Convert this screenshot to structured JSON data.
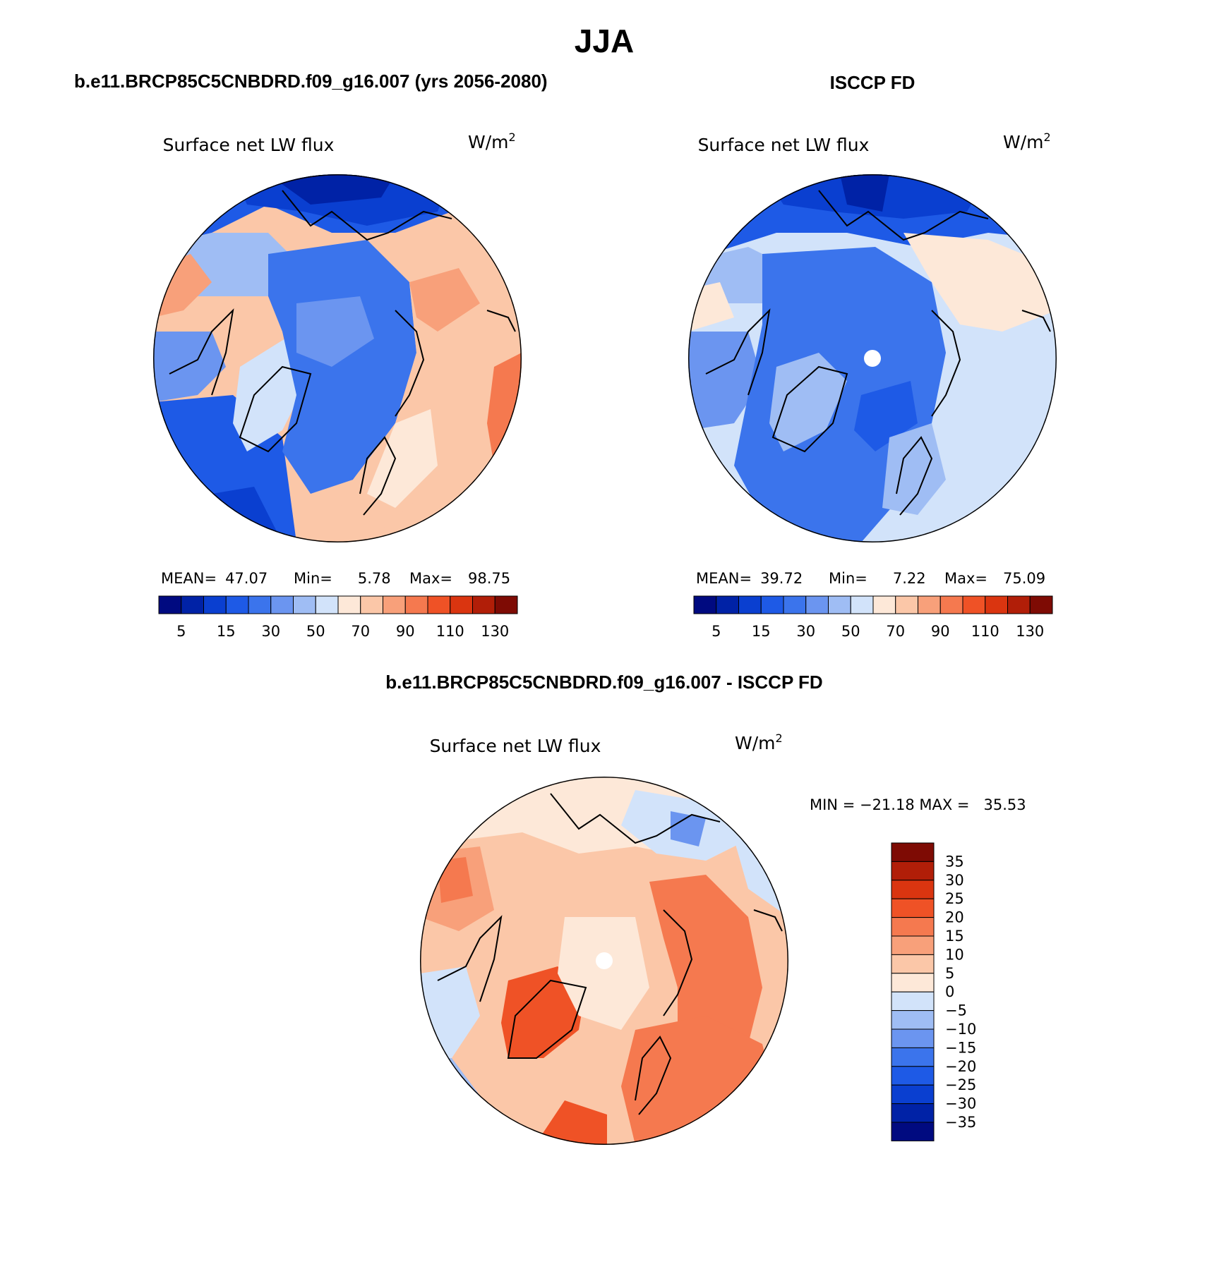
{
  "figure": {
    "title": "JJA",
    "left_caption": "b.e11.BRCP85C5CNBDRD.f09_g16.007 (yrs 2056-2080)",
    "right_caption": "ISCCP FD",
    "bottom_caption": "b.e11.BRCP85C5CNBDRD.f09_g16.007 - ISCCP FD"
  },
  "panels": [
    {
      "id": "model",
      "variable": "Surface net LW flux",
      "units_base": "W/m",
      "units_exp": "2",
      "stats": {
        "mean_label": "MEAN=",
        "mean": "47.07",
        "min_label": "Min=",
        "min": "5.78",
        "max_label": "Max=",
        "max": "98.75"
      }
    },
    {
      "id": "obs",
      "variable": "Surface net LW flux",
      "units_base": "W/m",
      "units_exp": "2",
      "stats": {
        "mean_label": "MEAN=",
        "mean": "39.72",
        "min_label": "Min=",
        "min": "7.22",
        "max_label": "Max=",
        "max": "75.09"
      }
    },
    {
      "id": "diff",
      "variable": "Surface net LW flux",
      "units_base": "W/m",
      "units_exp": "2",
      "stats_text": "MIN = −21.18 MAX =   35.53"
    }
  ],
  "colorbar_abs": {
    "tick_labels": [
      "5",
      "15",
      "30",
      "50",
      "70",
      "90",
      "110",
      "130"
    ],
    "colors": [
      "#000a80",
      "#0022a6",
      "#0a3fd0",
      "#1e5ae6",
      "#3b74ec",
      "#6b95f0",
      "#9fbdf4",
      "#d2e3fa",
      "#fde8d8",
      "#fbc7a8",
      "#f8a07a",
      "#f5794f",
      "#ef5226",
      "#da3510",
      "#b11e08",
      "#7e0b04"
    ]
  },
  "colorbar_diff": {
    "tick_labels": [
      "35",
      "30",
      "25",
      "20",
      "15",
      "10",
      "5",
      "0",
      "−5",
      "−10",
      "−15",
      "−20",
      "−25",
      "−30",
      "−35"
    ],
    "colors": [
      "#7e0b04",
      "#b11e08",
      "#da3510",
      "#ef5226",
      "#f5794f",
      "#f8a07a",
      "#fbc7a8",
      "#fde8d8",
      "#d2e3fa",
      "#9fbdf4",
      "#6b95f0",
      "#3b74ec",
      "#1e5ae6",
      "#0a3fd0",
      "#0022a6",
      "#000a80"
    ]
  }
}
